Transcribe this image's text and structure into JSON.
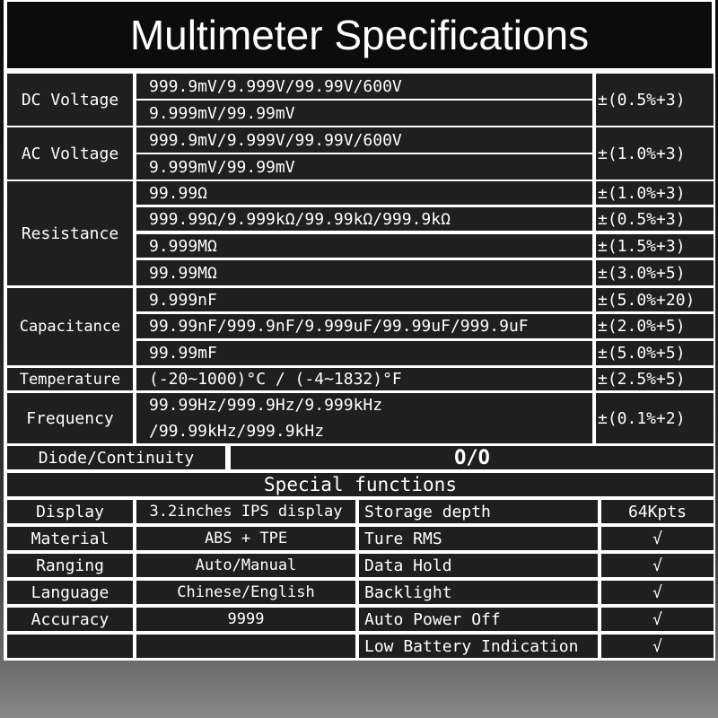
{
  "title": "Multimeter Specifications",
  "measurements": [
    {
      "label": "DC Voltage",
      "ranges": [
        "999.9mV/9.999V/99.99V/600V",
        "9.999mV/99.99mV"
      ],
      "accuracy": [
        "±(0.5%+3)"
      ]
    },
    {
      "label": "AC Voltage",
      "ranges": [
        "999.9mV/9.999V/99.99V/600V",
        "9.999mV/99.99mV"
      ],
      "accuracy": [
        "±(1.0%+3)"
      ]
    },
    {
      "label": "Resistance",
      "ranges": [
        "99.99Ω",
        "999.99Ω/9.999kΩ/99.99kΩ/999.9kΩ",
        "9.999MΩ",
        "99.99MΩ"
      ],
      "accuracy": [
        "±(1.0%+3)",
        "±(0.5%+3)",
        "±(1.5%+3)",
        "±(3.0%+5)"
      ]
    },
    {
      "label": "Capacitance",
      "ranges": [
        "9.999nF",
        "99.99nF/999.9nF/9.999uF/99.99uF/999.9uF",
        "99.99mF"
      ],
      "accuracy": [
        "±(5.0%+20)",
        "±(2.0%+5)",
        "±(5.0%+5)"
      ]
    },
    {
      "label": "Temperature",
      "ranges": [
        "(-20~1000)°C / (-4~1832)°F"
      ],
      "accuracy": [
        "±(2.5%+5)"
      ]
    },
    {
      "label": "Frequency",
      "ranges": [
        "99.99Hz/999.9Hz/9.999kHz",
        "/99.99kHz/999.9kHz"
      ],
      "accuracy": [
        "±(0.1%+2)"
      ]
    }
  ],
  "diode": {
    "label": "Diode/Continuity",
    "value": "O/O"
  },
  "special_title": "Special functions",
  "specs": [
    {
      "label": "Display",
      "value": "3.2inches IPS display",
      "feature": "Storage depth",
      "support": "64Kpts"
    },
    {
      "label": "Material",
      "value": "ABS + TPE",
      "feature": "Ture RMS",
      "support": "√"
    },
    {
      "label": "Ranging",
      "value": "Auto/Manual",
      "feature": "Data Hold",
      "support": "√"
    },
    {
      "label": "Language",
      "value": "Chinese/English",
      "feature": "Backlight",
      "support": "√"
    },
    {
      "label": "Accuracy",
      "value": "9999",
      "feature": "Auto Power Off",
      "support": "√"
    },
    {
      "label": "",
      "value": "",
      "feature": "Low Battery Indication",
      "support": "√"
    }
  ]
}
